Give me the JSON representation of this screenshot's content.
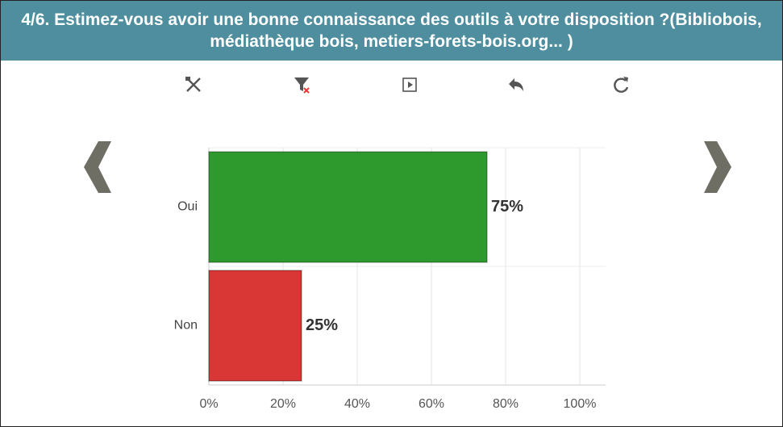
{
  "chart_data": {
    "type": "hbar",
    "title": "4/6. Estimez-vous avoir une bonne connaissance des outils à votre disposition ?(Bibliobois, médiathèque bois, metiers-forets-bois.org... )",
    "categories": [
      "Oui",
      "Non"
    ],
    "values": [
      75,
      25
    ],
    "value_labels": [
      "75%",
      "25%"
    ],
    "colors": [
      "#2e9a2e",
      "#d93636"
    ],
    "xlim": [
      0,
      100
    ],
    "xticks": [
      {
        "value": 0,
        "label": "0%"
      },
      {
        "value": 20,
        "label": "20%"
      },
      {
        "value": 40,
        "label": "40%"
      },
      {
        "value": 60,
        "label": "60%"
      },
      {
        "value": 80,
        "label": "80%"
      },
      {
        "value": 100,
        "label": "100%"
      }
    ],
    "grid": true
  }
}
